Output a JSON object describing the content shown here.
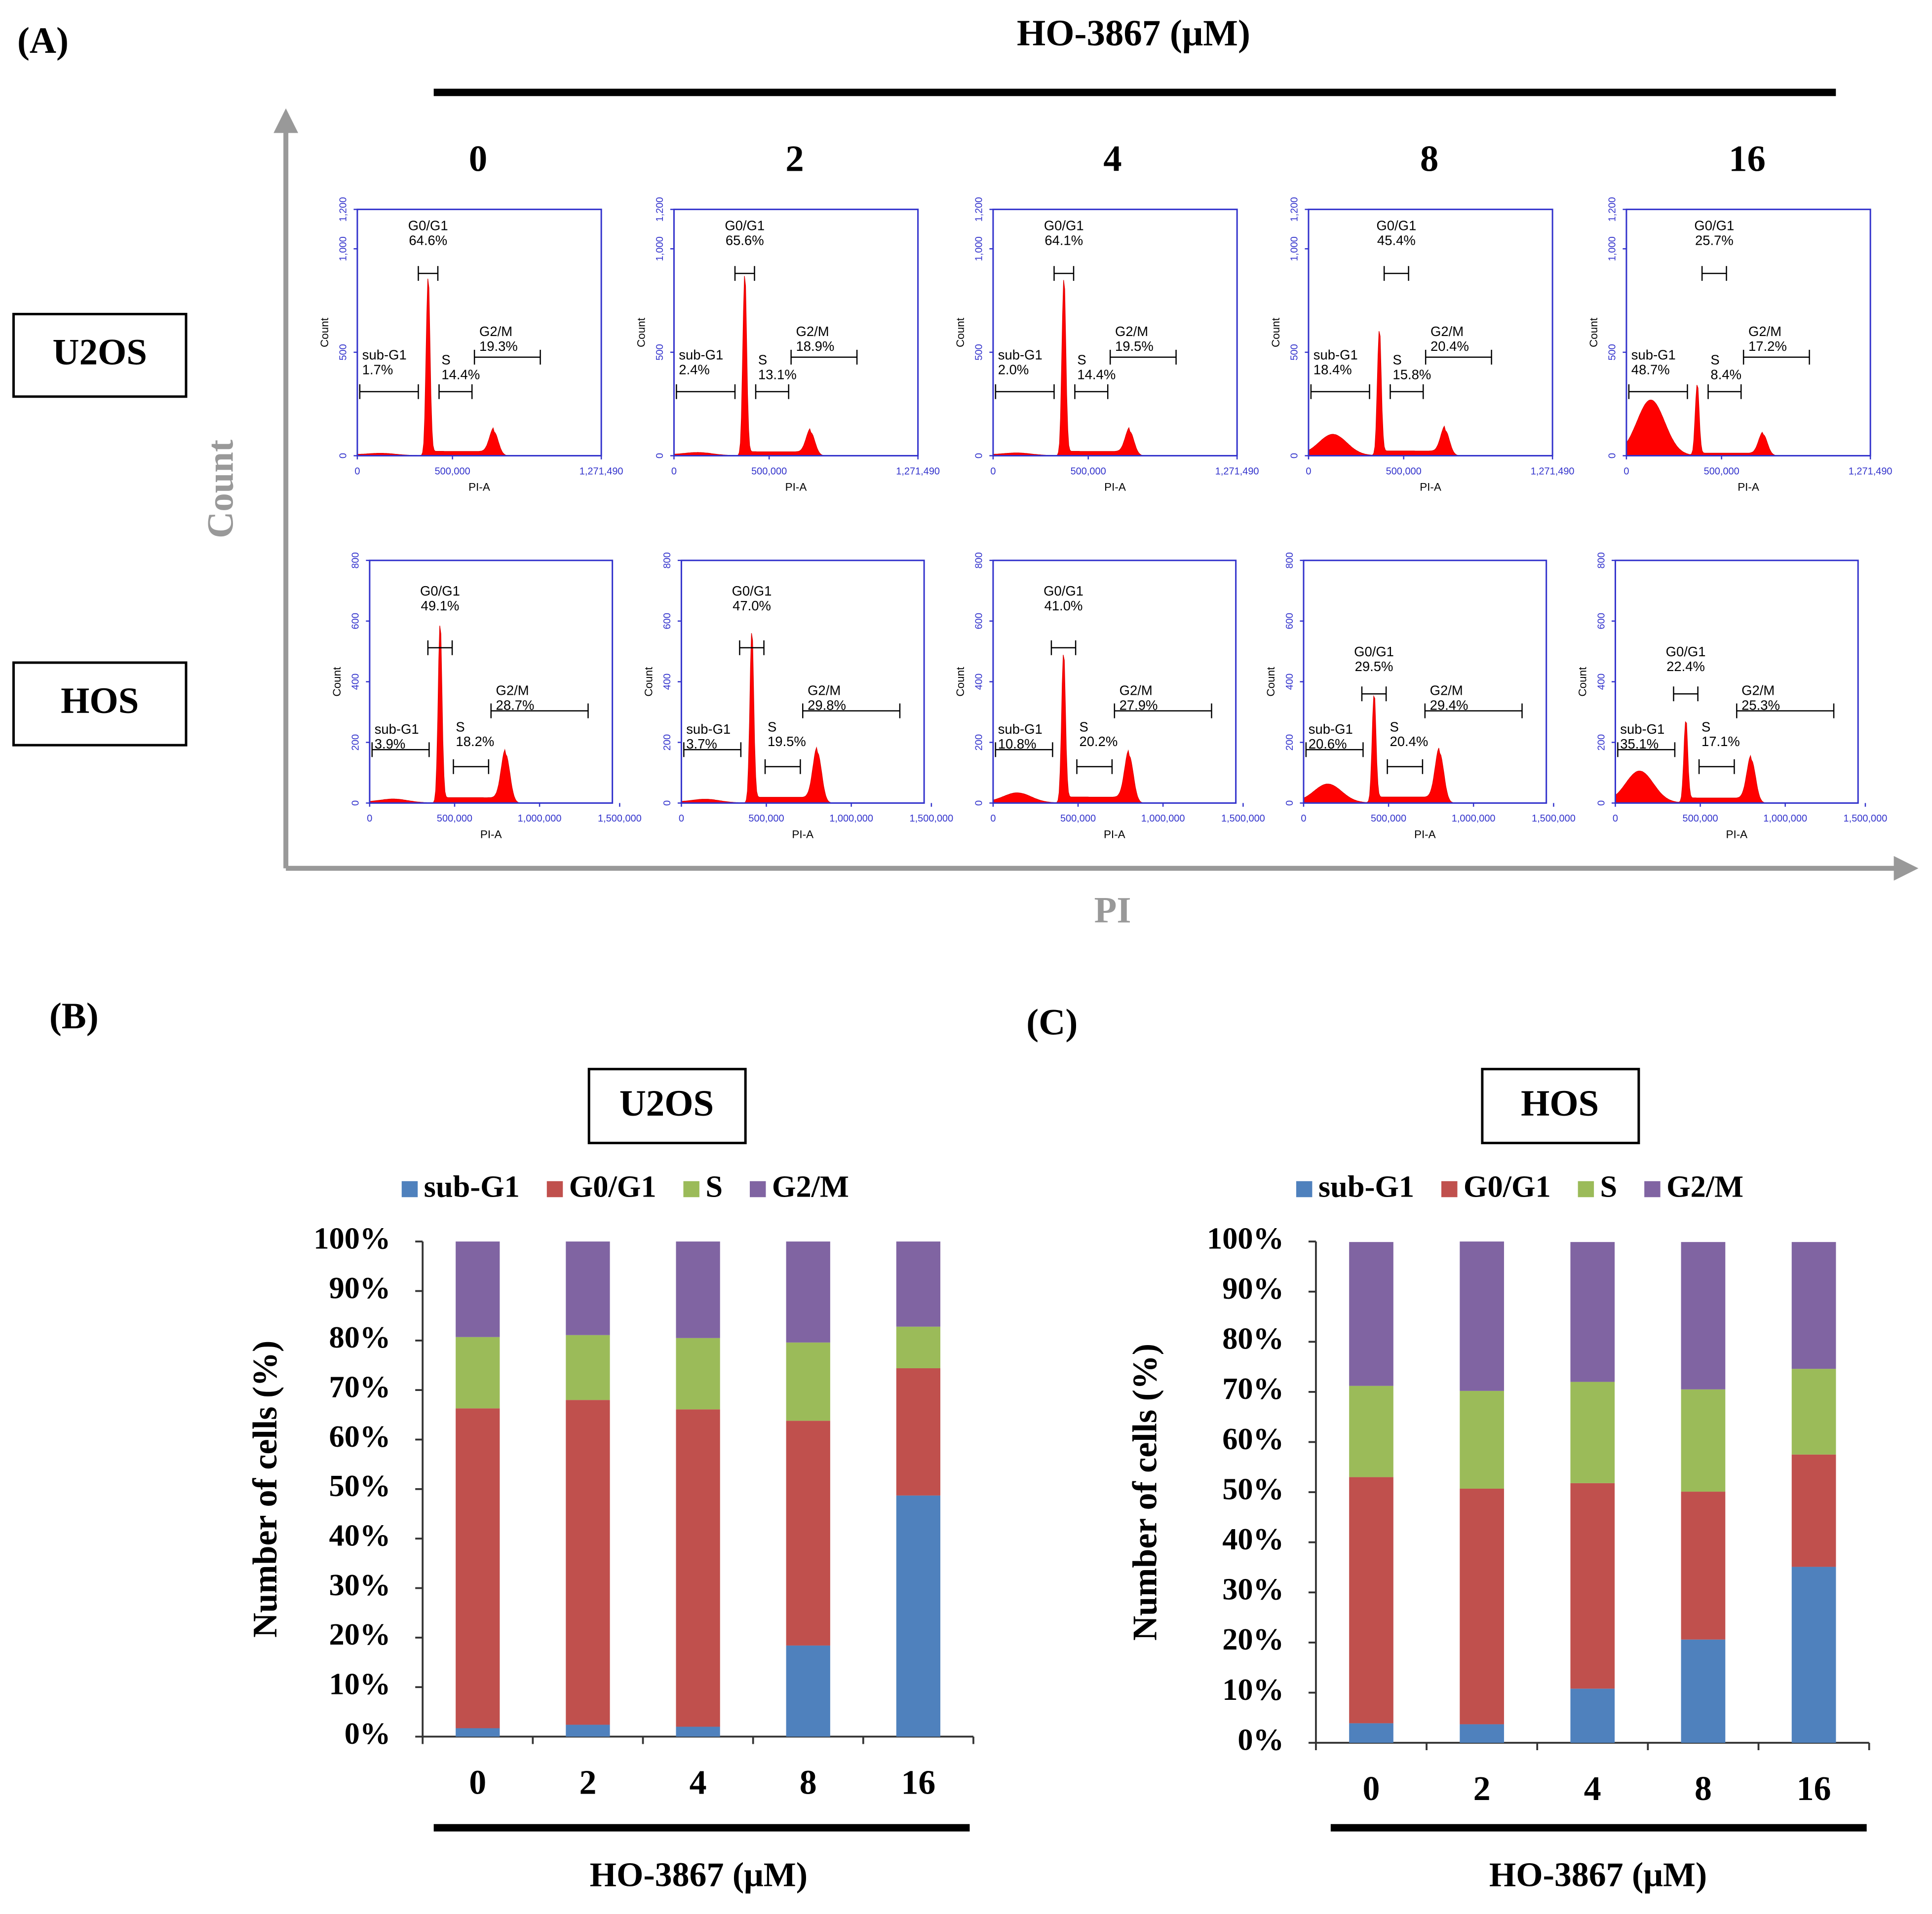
{
  "panel_a": {
    "label": "(A)",
    "title": "HO-3867 (μM)",
    "y_label": "Count",
    "x_label": "PI",
    "doses": [
      "0",
      "2",
      "4",
      "8",
      "16"
    ],
    "gate_names": [
      "sub-G1",
      "G0/G1",
      "S",
      "G2/M"
    ],
    "rows": [
      {
        "cell_line": "U2OS",
        "plot_x_label": "PI-A",
        "plot_y_label": "Count",
        "xticks": [
          "0",
          "500,000",
          "1,271,490"
        ],
        "yticks": [
          "0",
          "500",
          "1,000",
          "1,200"
        ],
        "gates": [
          [
            "1.7%",
            "64.6%",
            "14.4%",
            "19.3%"
          ],
          [
            "2.4%",
            "65.6%",
            "13.1%",
            "18.9%"
          ],
          [
            "2.0%",
            "64.1%",
            "14.4%",
            "19.5%"
          ],
          [
            "18.4%",
            "45.4%",
            "15.8%",
            "20.4%"
          ],
          [
            "48.7%",
            "25.7%",
            "8.4%",
            "17.2%"
          ]
        ]
      },
      {
        "cell_line": "HOS",
        "plot_x_label": "PI-A",
        "plot_y_label": "Count",
        "xticks": [
          "0",
          "500,000",
          "1,000,000",
          "1,500,000"
        ],
        "yticks": [
          "0",
          "200",
          "400",
          "600",
          "800"
        ],
        "gates": [
          [
            "3.9%",
            "49.1%",
            "18.2%",
            "28.7%"
          ],
          [
            "3.7%",
            "47.0%",
            "19.5%",
            "29.8%"
          ],
          [
            "10.8%",
            "41.0%",
            "20.2%",
            "27.9%"
          ],
          [
            "20.6%",
            "29.5%",
            "20.4%",
            "29.4%"
          ],
          [
            "35.1%",
            "22.4%",
            "17.1%",
            "25.3%"
          ]
        ]
      }
    ]
  },
  "chart_data": [
    {
      "type": "bar",
      "stacked": true,
      "panel": "(B)",
      "title": "U2OS",
      "categories": [
        "0",
        "2",
        "4",
        "8",
        "16"
      ],
      "x_label": "HO-3867 (μM)",
      "y_label": "Number of cells (%)",
      "ylim": [
        0,
        100
      ],
      "yticks": [
        {
          "value": 0,
          "label": "0%"
        },
        {
          "value": 10,
          "label": "10%"
        },
        {
          "value": 20,
          "label": "20%"
        },
        {
          "value": 30,
          "label": "30%"
        },
        {
          "value": 40,
          "label": "40%"
        },
        {
          "value": 50,
          "label": "50%"
        },
        {
          "value": 60,
          "label": "60%"
        },
        {
          "value": 70,
          "label": "70%"
        },
        {
          "value": 80,
          "label": "80%"
        },
        {
          "value": 90,
          "label": "90%"
        },
        {
          "value": 100,
          "label": "100%"
        }
      ],
      "legend": "top",
      "grid": false,
      "series": [
        {
          "name": "sub-G1",
          "color": "#4f81bd",
          "values": [
            1.7,
            2.4,
            2.0,
            18.4,
            48.7
          ]
        },
        {
          "name": "G0/G1",
          "color": "#c0504d",
          "values": [
            64.6,
            65.6,
            64.1,
            45.4,
            25.7
          ]
        },
        {
          "name": "S",
          "color": "#9bbb59",
          "values": [
            14.4,
            13.1,
            14.4,
            15.8,
            8.4
          ]
        },
        {
          "name": "G2/M",
          "color": "#8064a2",
          "values": [
            19.3,
            18.9,
            19.5,
            20.4,
            17.2
          ]
        }
      ]
    },
    {
      "type": "bar",
      "stacked": true,
      "panel": "(C)",
      "title": "HOS",
      "categories": [
        "0",
        "2",
        "4",
        "8",
        "16"
      ],
      "x_label": "HO-3867 (μM)",
      "y_label": "Number of cells (%)",
      "ylim": [
        0,
        100
      ],
      "yticks": [
        {
          "value": 0,
          "label": "0%"
        },
        {
          "value": 10,
          "label": "10%"
        },
        {
          "value": 20,
          "label": "20%"
        },
        {
          "value": 30,
          "label": "30%"
        },
        {
          "value": 40,
          "label": "40%"
        },
        {
          "value": 50,
          "label": "50%"
        },
        {
          "value": 60,
          "label": "60%"
        },
        {
          "value": 70,
          "label": "70%"
        },
        {
          "value": 80,
          "label": "80%"
        },
        {
          "value": 90,
          "label": "90%"
        },
        {
          "value": 100,
          "label": "100%"
        }
      ],
      "legend": "top",
      "grid": false,
      "series": [
        {
          "name": "sub-G1",
          "color": "#4f81bd",
          "values": [
            3.9,
            3.7,
            10.8,
            20.6,
            35.1
          ]
        },
        {
          "name": "G0/G1",
          "color": "#c0504d",
          "values": [
            49.1,
            47.0,
            41.0,
            29.5,
            22.4
          ]
        },
        {
          "name": "S",
          "color": "#9bbb59",
          "values": [
            18.2,
            19.5,
            20.2,
            20.4,
            17.1
          ]
        },
        {
          "name": "G2/M",
          "color": "#8064a2",
          "values": [
            28.7,
            29.8,
            27.9,
            29.4,
            25.3
          ]
        }
      ]
    }
  ]
}
